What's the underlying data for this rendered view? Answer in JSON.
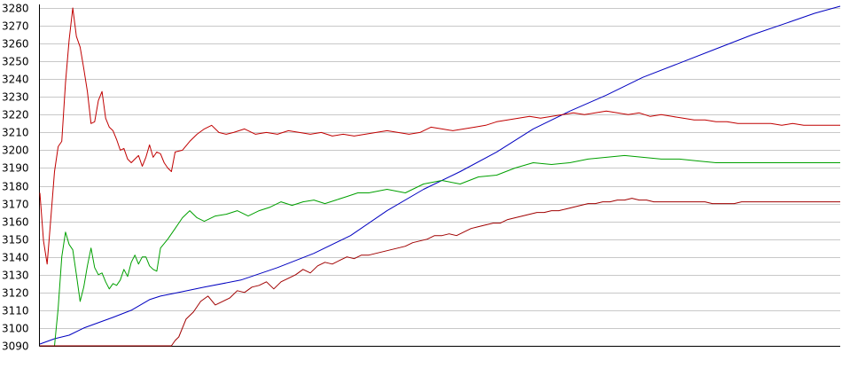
{
  "chart_data": {
    "type": "line",
    "title": "",
    "xlabel": "",
    "ylabel": "",
    "ylim": [
      3090,
      3280
    ],
    "y_ticks": [
      "3090",
      "3100",
      "3110",
      "3120",
      "3130",
      "3140",
      "3150",
      "3160",
      "3170",
      "3180",
      "3190",
      "3200",
      "3210",
      "3220",
      "3230",
      "3240",
      "3250",
      "3260",
      "3270",
      "3280"
    ],
    "grid": true,
    "legend": "none",
    "x_count": 220,
    "series": [
      {
        "color": "#0000c0",
        "points": [
          [
            0,
            3091
          ],
          [
            4,
            3094
          ],
          [
            8,
            3096
          ],
          [
            12,
            3100
          ],
          [
            16,
            3103
          ],
          [
            20,
            3106
          ],
          [
            25,
            3110
          ],
          [
            30,
            3116
          ],
          [
            33,
            3118
          ],
          [
            38,
            3120
          ],
          [
            45,
            3123
          ],
          [
            55,
            3127
          ],
          [
            65,
            3134
          ],
          [
            75,
            3142
          ],
          [
            85,
            3152
          ],
          [
            95,
            3166
          ],
          [
            105,
            3178
          ],
          [
            115,
            3188
          ],
          [
            125,
            3199
          ],
          [
            135,
            3212
          ],
          [
            145,
            3222
          ],
          [
            155,
            3231
          ],
          [
            165,
            3241
          ],
          [
            175,
            3249
          ],
          [
            185,
            3257
          ],
          [
            195,
            3265
          ],
          [
            205,
            3272
          ],
          [
            212,
            3277
          ],
          [
            219,
            3281
          ]
        ]
      },
      {
        "color": "#00a000",
        "points": [
          [
            0,
            3090
          ],
          [
            4,
            3090
          ],
          [
            5,
            3111
          ],
          [
            6,
            3140
          ],
          [
            7,
            3154
          ],
          [
            8,
            3147
          ],
          [
            9,
            3144
          ],
          [
            10,
            3130
          ],
          [
            11,
            3115
          ],
          [
            12,
            3123
          ],
          [
            13,
            3135
          ],
          [
            14,
            3145
          ],
          [
            15,
            3134
          ],
          [
            16,
            3130
          ],
          [
            17,
            3131
          ],
          [
            18,
            3126
          ],
          [
            19,
            3122
          ],
          [
            20,
            3125
          ],
          [
            21,
            3124
          ],
          [
            22,
            3127
          ],
          [
            23,
            3133
          ],
          [
            24,
            3129
          ],
          [
            25,
            3137
          ],
          [
            26,
            3141
          ],
          [
            27,
            3136
          ],
          [
            28,
            3140
          ],
          [
            29,
            3140
          ],
          [
            30,
            3135
          ],
          [
            31,
            3133
          ],
          [
            32,
            3132
          ],
          [
            33,
            3145
          ],
          [
            35,
            3150
          ],
          [
            37,
            3156
          ],
          [
            39,
            3162
          ],
          [
            41,
            3166
          ],
          [
            43,
            3162
          ],
          [
            45,
            3160
          ],
          [
            48,
            3163
          ],
          [
            51,
            3164
          ],
          [
            54,
            3166
          ],
          [
            57,
            3163
          ],
          [
            60,
            3166
          ],
          [
            63,
            3168
          ],
          [
            66,
            3171
          ],
          [
            69,
            3169
          ],
          [
            72,
            3171
          ],
          [
            75,
            3172
          ],
          [
            78,
            3170
          ],
          [
            81,
            3172
          ],
          [
            84,
            3174
          ],
          [
            87,
            3176
          ],
          [
            90,
            3176
          ],
          [
            95,
            3178
          ],
          [
            100,
            3176
          ],
          [
            105,
            3181
          ],
          [
            110,
            3183
          ],
          [
            115,
            3181
          ],
          [
            120,
            3185
          ],
          [
            125,
            3186
          ],
          [
            130,
            3190
          ],
          [
            135,
            3193
          ],
          [
            140,
            3192
          ],
          [
            145,
            3193
          ],
          [
            150,
            3195
          ],
          [
            155,
            3196
          ],
          [
            160,
            3197
          ],
          [
            165,
            3196
          ],
          [
            170,
            3195
          ],
          [
            175,
            3195
          ],
          [
            180,
            3194
          ],
          [
            185,
            3193
          ],
          [
            190,
            3193
          ],
          [
            195,
            3193
          ],
          [
            200,
            3193
          ],
          [
            205,
            3193
          ],
          [
            210,
            3193
          ],
          [
            215,
            3193
          ],
          [
            219,
            3193
          ]
        ]
      },
      {
        "color": "#c00000",
        "points": [
          [
            0,
            3176
          ],
          [
            1,
            3149
          ],
          [
            2,
            3136
          ],
          [
            3,
            3162
          ],
          [
            4,
            3188
          ],
          [
            5,
            3202
          ],
          [
            6,
            3205
          ],
          [
            7,
            3238
          ],
          [
            8,
            3262
          ],
          [
            9,
            3280
          ],
          [
            10,
            3264
          ],
          [
            11,
            3258
          ],
          [
            12,
            3246
          ],
          [
            13,
            3233
          ],
          [
            14,
            3215
          ],
          [
            15,
            3216
          ],
          [
            16,
            3228
          ],
          [
            17,
            3233
          ],
          [
            18,
            3218
          ],
          [
            19,
            3213
          ],
          [
            20,
            3211
          ],
          [
            21,
            3206
          ],
          [
            22,
            3200
          ],
          [
            23,
            3201
          ],
          [
            24,
            3195
          ],
          [
            25,
            3193
          ],
          [
            26,
            3195
          ],
          [
            27,
            3197
          ],
          [
            28,
            3191
          ],
          [
            29,
            3196
          ],
          [
            30,
            3203
          ],
          [
            31,
            3196
          ],
          [
            32,
            3199
          ],
          [
            33,
            3198
          ],
          [
            34,
            3193
          ],
          [
            35,
            3190
          ],
          [
            36,
            3188
          ],
          [
            37,
            3199
          ],
          [
            39,
            3200
          ],
          [
            41,
            3205
          ],
          [
            43,
            3209
          ],
          [
            45,
            3212
          ],
          [
            47,
            3214
          ],
          [
            49,
            3210
          ],
          [
            51,
            3209
          ],
          [
            53,
            3210
          ],
          [
            56,
            3212
          ],
          [
            59,
            3209
          ],
          [
            62,
            3210
          ],
          [
            65,
            3209
          ],
          [
            68,
            3211
          ],
          [
            71,
            3210
          ],
          [
            74,
            3209
          ],
          [
            77,
            3210
          ],
          [
            80,
            3208
          ],
          [
            83,
            3209
          ],
          [
            86,
            3208
          ],
          [
            89,
            3209
          ],
          [
            92,
            3210
          ],
          [
            95,
            3211
          ],
          [
            98,
            3210
          ],
          [
            101,
            3209
          ],
          [
            104,
            3210
          ],
          [
            107,
            3213
          ],
          [
            110,
            3212
          ],
          [
            113,
            3211
          ],
          [
            116,
            3212
          ],
          [
            119,
            3213
          ],
          [
            122,
            3214
          ],
          [
            125,
            3216
          ],
          [
            128,
            3217
          ],
          [
            131,
            3218
          ],
          [
            134,
            3219
          ],
          [
            137,
            3218
          ],
          [
            140,
            3219
          ],
          [
            143,
            3220
          ],
          [
            146,
            3221
          ],
          [
            149,
            3220
          ],
          [
            152,
            3221
          ],
          [
            155,
            3222
          ],
          [
            158,
            3221
          ],
          [
            161,
            3220
          ],
          [
            164,
            3221
          ],
          [
            167,
            3219
          ],
          [
            170,
            3220
          ],
          [
            173,
            3219
          ],
          [
            176,
            3218
          ],
          [
            179,
            3217
          ],
          [
            182,
            3217
          ],
          [
            185,
            3216
          ],
          [
            188,
            3216
          ],
          [
            191,
            3215
          ],
          [
            194,
            3215
          ],
          [
            197,
            3215
          ],
          [
            200,
            3215
          ],
          [
            203,
            3214
          ],
          [
            206,
            3215
          ],
          [
            209,
            3214
          ],
          [
            212,
            3214
          ],
          [
            215,
            3214
          ],
          [
            219,
            3214
          ]
        ]
      },
      {
        "color": "#a00000",
        "points": [
          [
            0,
            3090
          ],
          [
            20,
            3090
          ],
          [
            36,
            3090
          ],
          [
            37,
            3093
          ],
          [
            38,
            3095
          ],
          [
            39,
            3100
          ],
          [
            40,
            3105
          ],
          [
            42,
            3109
          ],
          [
            44,
            3115
          ],
          [
            46,
            3118
          ],
          [
            48,
            3113
          ],
          [
            50,
            3115
          ],
          [
            52,
            3117
          ],
          [
            54,
            3121
          ],
          [
            56,
            3120
          ],
          [
            58,
            3123
          ],
          [
            60,
            3124
          ],
          [
            62,
            3126
          ],
          [
            64,
            3122
          ],
          [
            66,
            3126
          ],
          [
            68,
            3128
          ],
          [
            70,
            3130
          ],
          [
            72,
            3133
          ],
          [
            74,
            3131
          ],
          [
            76,
            3135
          ],
          [
            78,
            3137
          ],
          [
            80,
            3136
          ],
          [
            82,
            3138
          ],
          [
            84,
            3140
          ],
          [
            86,
            3139
          ],
          [
            88,
            3141
          ],
          [
            90,
            3141
          ],
          [
            92,
            3142
          ],
          [
            94,
            3143
          ],
          [
            96,
            3144
          ],
          [
            98,
            3145
          ],
          [
            100,
            3146
          ],
          [
            102,
            3148
          ],
          [
            104,
            3149
          ],
          [
            106,
            3150
          ],
          [
            108,
            3152
          ],
          [
            110,
            3152
          ],
          [
            112,
            3153
          ],
          [
            114,
            3152
          ],
          [
            116,
            3154
          ],
          [
            118,
            3156
          ],
          [
            120,
            3157
          ],
          [
            122,
            3158
          ],
          [
            124,
            3159
          ],
          [
            126,
            3159
          ],
          [
            128,
            3161
          ],
          [
            130,
            3162
          ],
          [
            132,
            3163
          ],
          [
            134,
            3164
          ],
          [
            136,
            3165
          ],
          [
            138,
            3165
          ],
          [
            140,
            3166
          ],
          [
            142,
            3166
          ],
          [
            144,
            3167
          ],
          [
            146,
            3168
          ],
          [
            148,
            3169
          ],
          [
            150,
            3170
          ],
          [
            152,
            3170
          ],
          [
            154,
            3171
          ],
          [
            156,
            3171
          ],
          [
            158,
            3172
          ],
          [
            160,
            3172
          ],
          [
            162,
            3173
          ],
          [
            164,
            3172
          ],
          [
            166,
            3172
          ],
          [
            168,
            3171
          ],
          [
            170,
            3171
          ],
          [
            172,
            3171
          ],
          [
            174,
            3171
          ],
          [
            176,
            3171
          ],
          [
            178,
            3171
          ],
          [
            180,
            3171
          ],
          [
            182,
            3171
          ],
          [
            184,
            3170
          ],
          [
            186,
            3170
          ],
          [
            188,
            3170
          ],
          [
            190,
            3170
          ],
          [
            192,
            3171
          ],
          [
            194,
            3171
          ],
          [
            196,
            3171
          ],
          [
            198,
            3171
          ],
          [
            200,
            3171
          ],
          [
            202,
            3171
          ],
          [
            204,
            3171
          ],
          [
            206,
            3171
          ],
          [
            208,
            3171
          ],
          [
            210,
            3171
          ],
          [
            212,
            3171
          ],
          [
            214,
            3171
          ],
          [
            216,
            3171
          ],
          [
            219,
            3171
          ]
        ]
      }
    ]
  }
}
